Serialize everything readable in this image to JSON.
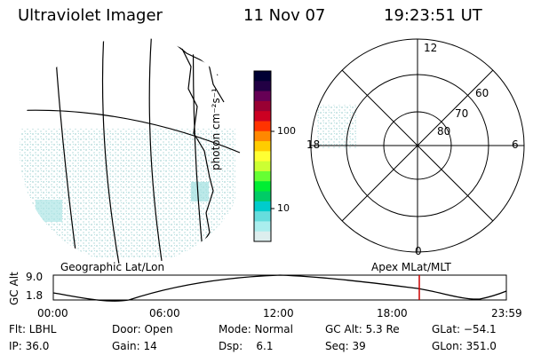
{
  "header": {
    "instrument": "Ultraviolet Imager",
    "date": "11 Nov 07",
    "time": "19:23:51 UT"
  },
  "colorbar": {
    "unit_label": "photon cm⁻²s⁻¹",
    "tick_labels": [
      "100",
      "10"
    ],
    "colors": [
      "#000033",
      "#220044",
      "#660055",
      "#990033",
      "#cc0022",
      "#ff3300",
      "#ff8800",
      "#ffcc00",
      "#ffff33",
      "#ccff33",
      "#66ff33",
      "#00ee33",
      "#00cc66",
      "#00cccc",
      "#66dddd",
      "#aaeeee",
      "#ddeeee"
    ]
  },
  "polar": {
    "mlt_labels": {
      "top": "12",
      "left": "18",
      "right": "6",
      "bottom": "0"
    },
    "lat_labels": [
      "60",
      "70",
      "80"
    ]
  },
  "timeline": {
    "left_title": "Geographic Lat/Lon",
    "right_title": "Apex MLat/MLT",
    "axis_label": "GC Alt",
    "y_ticks": [
      "9.0",
      "1.8"
    ],
    "x_ticks": [
      "00:00",
      "06:00",
      "12:00",
      "18:00",
      "23:59"
    ],
    "marker_color": "#cc0000"
  },
  "status": {
    "flt": "Flt: LBHL",
    "door": "Door: Open",
    "mode": "Mode: Normal",
    "gcalt": "GC Alt: 5.3 Re",
    "glat": "GLat: −54.1",
    "ip": "IP: 36.0",
    "gain": "Gain: 14",
    "dsp": "Dsp:    6.1",
    "seq": "Seq: 39",
    "glon": "GLon: 351.0"
  }
}
